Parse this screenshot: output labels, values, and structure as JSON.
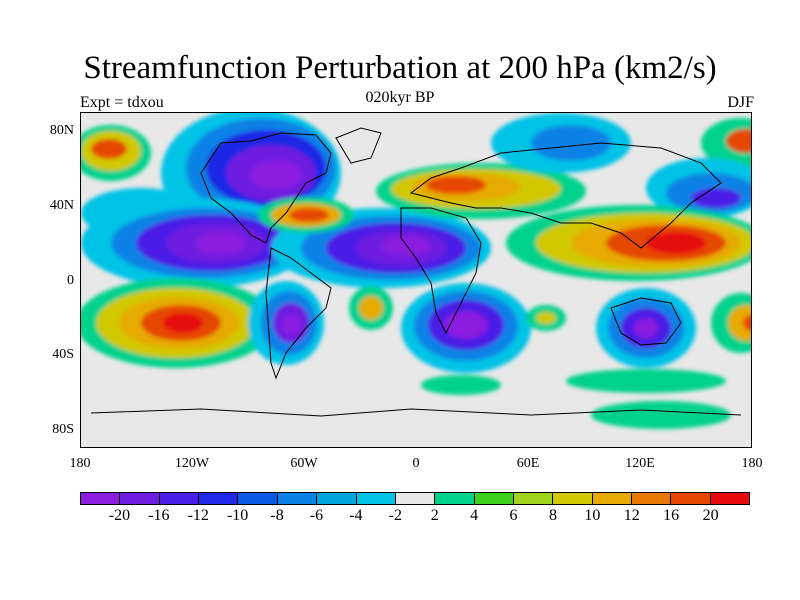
{
  "title": "Streamfunction Perturbation at 200 hPa (km2/s)",
  "left_label": "Expt = tdxou",
  "center_label": "020kyr BP",
  "right_label": "DJF",
  "lat_ticks": [
    "80N",
    "40N",
    "0",
    "40S",
    "80S"
  ],
  "lon_ticks": [
    "180",
    "120W",
    "60W",
    "0",
    "60E",
    "120E",
    "180"
  ],
  "colorbar": {
    "colors": [
      "#8b1ee0",
      "#6e1ee0",
      "#4b1ee6",
      "#1e28e6",
      "#0a5ae6",
      "#0a82e6",
      "#00a5e0",
      "#00c3e6",
      "#e8e8e8",
      "#00d28c",
      "#3cd21e",
      "#a0d21e",
      "#d2c800",
      "#e6aa00",
      "#e67800",
      "#e64600",
      "#e60a0a"
    ],
    "labels": [
      "-20",
      "-16",
      "-12",
      "-10",
      "-8",
      "-6",
      "-4",
      "-2",
      "2",
      "4",
      "6",
      "8",
      "10",
      "12",
      "16",
      "20"
    ]
  },
  "map_data": {
    "projection": "cylindrical equidistant",
    "lon_range": [
      -180,
      180
    ],
    "lat_range": [
      -90,
      90
    ],
    "features": [
      {
        "name": "North America low",
        "lon": -95,
        "lat": 55,
        "peak": -20
      },
      {
        "name": "Tropical East Pacific low",
        "lon": -120,
        "lat": 18,
        "peak": -20
      },
      {
        "name": "Tropical Atlantic/Africa low",
        "lon": -5,
        "lat": 15,
        "peak": -20
      },
      {
        "name": "South America low",
        "lon": -65,
        "lat": -25,
        "peak": -20
      },
      {
        "name": "Southern Africa low",
        "lon": 25,
        "lat": -25,
        "peak": -20
      },
      {
        "name": "Australia low",
        "lon": 130,
        "lat": -25,
        "peak": -20
      },
      {
        "name": "North Pacific low",
        "lon": 160,
        "lat": 42,
        "peak": -12
      },
      {
        "name": "South Pacific high",
        "lon": -130,
        "lat": -20,
        "peak": 20
      },
      {
        "name": "Asia/West Pacific high",
        "lon": 140,
        "lat": 20,
        "peak": 20
      },
      {
        "name": "Eurasia high",
        "lon": 30,
        "lat": 52,
        "peak": 12
      },
      {
        "name": "Caribbean high",
        "lon": -60,
        "lat": 35,
        "peak": 12
      },
      {
        "name": "Alaska high",
        "lon": -165,
        "lat": 70,
        "peak": 12
      },
      {
        "name": "Southern Ocean high",
        "lon": 95,
        "lat": -65,
        "peak": 4
      }
    ]
  }
}
